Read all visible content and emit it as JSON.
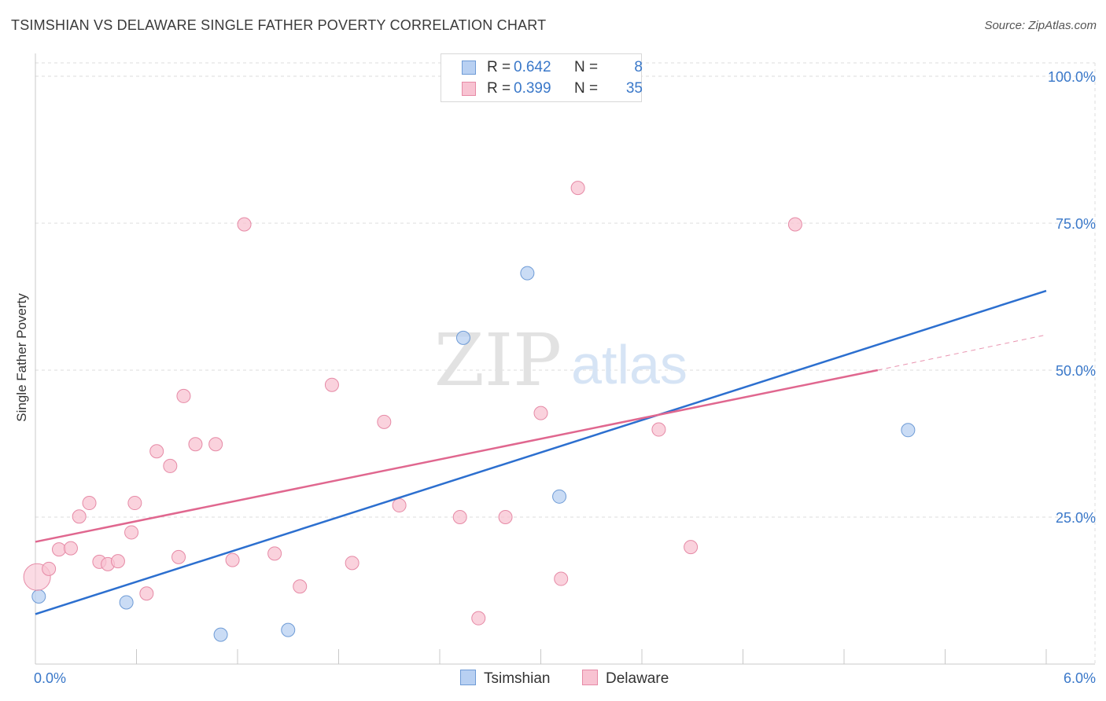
{
  "header": {
    "title": "TSIMSHIAN VS DELAWARE SINGLE FATHER POVERTY CORRELATION CHART",
    "source": "Source: ZipAtlas.com"
  },
  "watermark": {
    "zip": "ZIP",
    "atlas": "atlas"
  },
  "legend_top": {
    "rows": [
      {
        "r_label": "R =",
        "r_value": "0.642",
        "n_label": "N =",
        "n_value": "8"
      },
      {
        "r_label": "R =",
        "r_value": "0.399",
        "n_label": "N =",
        "n_value": "35"
      }
    ]
  },
  "legend_bottom": {
    "items": [
      {
        "label": "Tsimshian"
      },
      {
        "label": "Delaware"
      }
    ]
  },
  "colors": {
    "blue_fill": "#b8d0f2",
    "blue_stroke": "#6e9bd6",
    "blue_line": "#2c6fcf",
    "pink_fill": "#f8c3d2",
    "pink_stroke": "#e68aa6",
    "pink_line": "#e0678f",
    "axis_text": "#3a78c9",
    "grid": "#dcdcdc"
  },
  "chart_data": {
    "type": "scatter",
    "title": "TSIMSHIAN VS DELAWARE SINGLE FATHER POVERTY CORRELATION CHART",
    "xlabel": "",
    "ylabel": "Single Father Poverty",
    "xlim": [
      0,
      6
    ],
    "ylim": [
      0,
      100
    ],
    "x_tick_labels": [
      "0.0%",
      "6.0%"
    ],
    "y_ticks": [
      25,
      50,
      75,
      100
    ],
    "y_tick_labels": [
      "25.0%",
      "50.0%",
      "75.0%",
      "100.0%"
    ],
    "grid": true,
    "legend_placement": "top-center",
    "series": [
      {
        "name": "Tsimshian",
        "r": 0.642,
        "n": 8,
        "points": [
          {
            "x": 0.02,
            "y": 11.5
          },
          {
            "x": 0.54,
            "y": 10.5
          },
          {
            "x": 1.1,
            "y": 5.0
          },
          {
            "x": 1.5,
            "y": 5.8
          },
          {
            "x": 2.54,
            "y": 55.5
          },
          {
            "x": 2.92,
            "y": 66.5
          },
          {
            "x": 3.11,
            "y": 28.5
          },
          {
            "x": 5.18,
            "y": 39.8
          }
        ],
        "trend": {
          "x": [
            0.0,
            6.0
          ],
          "y": [
            8.5,
            63.5
          ]
        }
      },
      {
        "name": "Delaware",
        "r": 0.399,
        "n": 35,
        "points": [
          {
            "x": 0.01,
            "y": 14.8
          },
          {
            "x": 0.08,
            "y": 16.2
          },
          {
            "x": 0.14,
            "y": 19.5
          },
          {
            "x": 0.21,
            "y": 19.7
          },
          {
            "x": 0.26,
            "y": 25.1
          },
          {
            "x": 0.32,
            "y": 27.4
          },
          {
            "x": 0.38,
            "y": 17.4
          },
          {
            "x": 0.43,
            "y": 17.0
          },
          {
            "x": 0.49,
            "y": 17.5
          },
          {
            "x": 0.57,
            "y": 22.4
          },
          {
            "x": 0.59,
            "y": 27.4
          },
          {
            "x": 0.66,
            "y": 12.0
          },
          {
            "x": 0.72,
            "y": 36.2
          },
          {
            "x": 0.8,
            "y": 33.7
          },
          {
            "x": 0.85,
            "y": 18.2
          },
          {
            "x": 0.88,
            "y": 45.6
          },
          {
            "x": 0.95,
            "y": 37.4
          },
          {
            "x": 1.07,
            "y": 37.4
          },
          {
            "x": 1.17,
            "y": 17.7
          },
          {
            "x": 1.24,
            "y": 74.8
          },
          {
            "x": 1.42,
            "y": 18.8
          },
          {
            "x": 1.57,
            "y": 13.2
          },
          {
            "x": 1.76,
            "y": 47.5
          },
          {
            "x": 1.88,
            "y": 17.2
          },
          {
            "x": 2.07,
            "y": 41.2
          },
          {
            "x": 2.16,
            "y": 27.0
          },
          {
            "x": 2.52,
            "y": 25.0
          },
          {
            "x": 2.63,
            "y": 7.8
          },
          {
            "x": 2.79,
            "y": 25.0
          },
          {
            "x": 3.0,
            "y": 42.7
          },
          {
            "x": 3.12,
            "y": 14.5
          },
          {
            "x": 3.22,
            "y": 81.0
          },
          {
            "x": 3.7,
            "y": 39.9
          },
          {
            "x": 3.89,
            "y": 19.9
          },
          {
            "x": 4.51,
            "y": 74.8
          }
        ],
        "trend": {
          "x": [
            0.0,
            5.0
          ],
          "y": [
            20.8,
            50.0
          ]
        },
        "trend_dashed": {
          "x": [
            5.0,
            6.0
          ],
          "y": [
            50.0,
            56.0
          ]
        }
      }
    ]
  }
}
